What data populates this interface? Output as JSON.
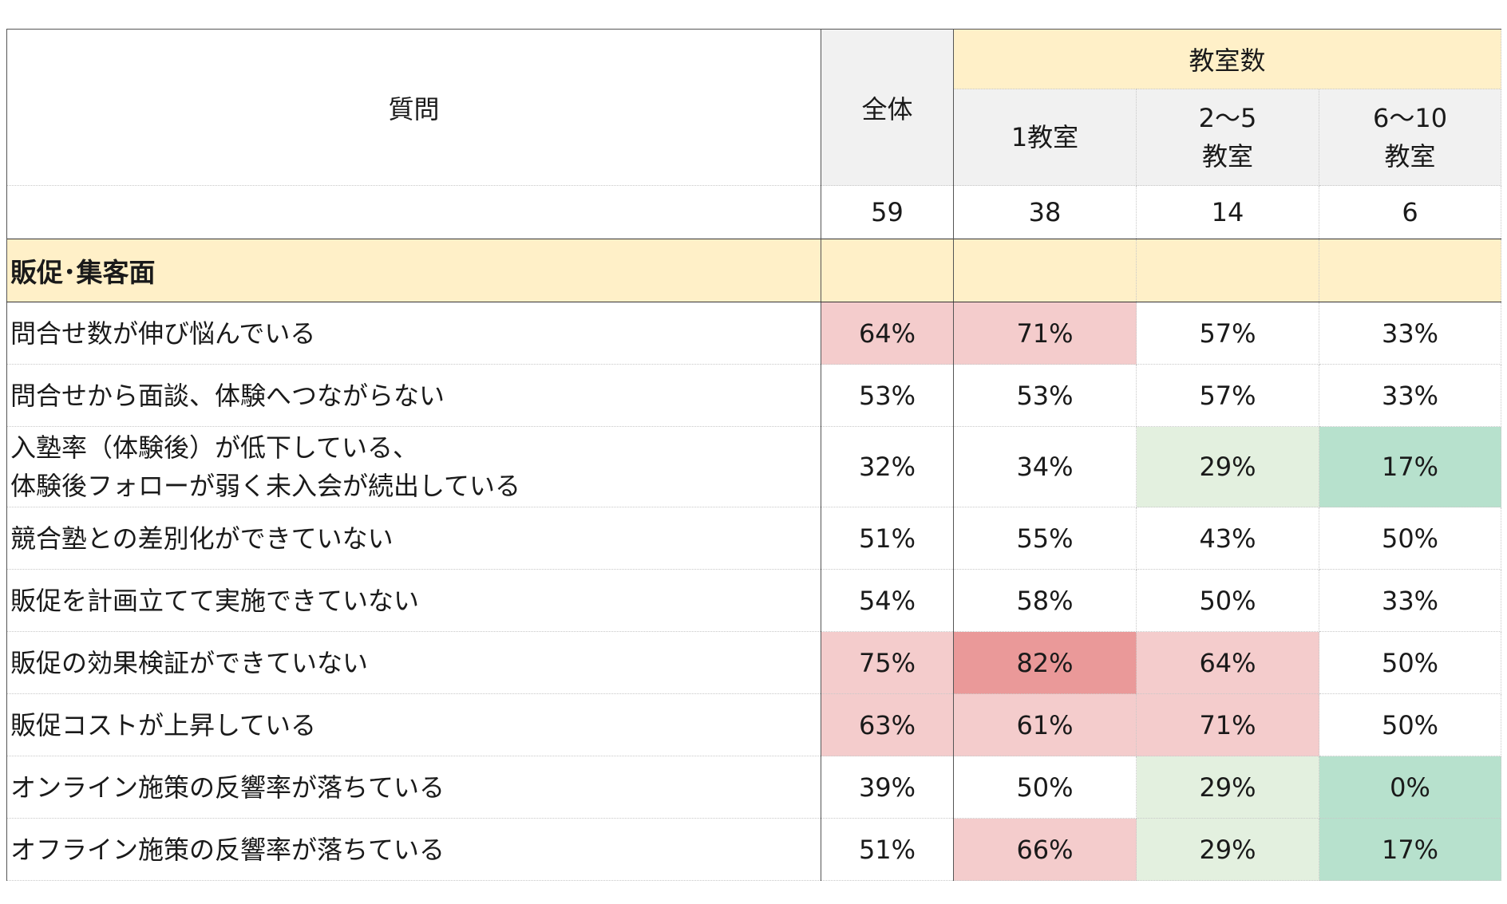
{
  "header": {
    "question": "質問",
    "all": "全体",
    "group": "教室数",
    "col1": "1教室",
    "col2_line1": "2〜5",
    "col2_line2": "教室",
    "col3_line1": "6〜10",
    "col3_line2": "教室",
    "n_all": "59",
    "n_1": "38",
    "n_2": "14",
    "n_3": "6"
  },
  "section": {
    "label": "販促･集客面"
  },
  "colors": {
    "pink": "#f4cccc",
    "red": "#ea9999",
    "light_green": "#e3f0df",
    "green": "#b7e1cd",
    "header_yellow": "#fff0c8",
    "header_gray": "#f1f1f1"
  },
  "rows": [
    {
      "q": "問合せ数が伸び悩んでいる",
      "all": "64%",
      "c1": "71%",
      "c2": "57%",
      "c3": "33%",
      "h": [
        "pink",
        "pink",
        "none",
        "none"
      ]
    },
    {
      "q": "問合せから面談、体験へつながらない",
      "all": "53%",
      "c1": "53%",
      "c2": "57%",
      "c3": "33%",
      "h": [
        "none",
        "none",
        "none",
        "none"
      ]
    },
    {
      "q_line1": "入塾率（体験後）が低下している、",
      "q_line2": "体験後フォローが弱く未入会が続出している",
      "all": "32%",
      "c1": "34%",
      "c2": "29%",
      "c3": "17%",
      "h": [
        "none",
        "none",
        "lgreen",
        "green"
      ]
    },
    {
      "q": "競合塾との差別化ができていない",
      "all": "51%",
      "c1": "55%",
      "c2": "43%",
      "c3": "50%",
      "h": [
        "none",
        "none",
        "none",
        "none"
      ]
    },
    {
      "q": "販促を計画立てて実施できていない",
      "all": "54%",
      "c1": "58%",
      "c2": "50%",
      "c3": "33%",
      "h": [
        "none",
        "none",
        "none",
        "none"
      ]
    },
    {
      "q": "販促の効果検証ができていない",
      "all": "75%",
      "c1": "82%",
      "c2": "64%",
      "c3": "50%",
      "h": [
        "pink",
        "red",
        "pink",
        "none"
      ]
    },
    {
      "q": "販促コストが上昇している",
      "all": "63%",
      "c1": "61%",
      "c2": "71%",
      "c3": "50%",
      "h": [
        "pink",
        "pink",
        "pink",
        "none"
      ]
    },
    {
      "q": "オンライン施策の反響率が落ちている",
      "all": "39%",
      "c1": "50%",
      "c2": "29%",
      "c3": "0%",
      "h": [
        "none",
        "none",
        "lgreen",
        "green"
      ]
    },
    {
      "q": "オフライン施策の反響率が落ちている",
      "all": "51%",
      "c1": "66%",
      "c2": "29%",
      "c3": "17%",
      "h": [
        "none",
        "pink",
        "lgreen",
        "green"
      ]
    }
  ]
}
